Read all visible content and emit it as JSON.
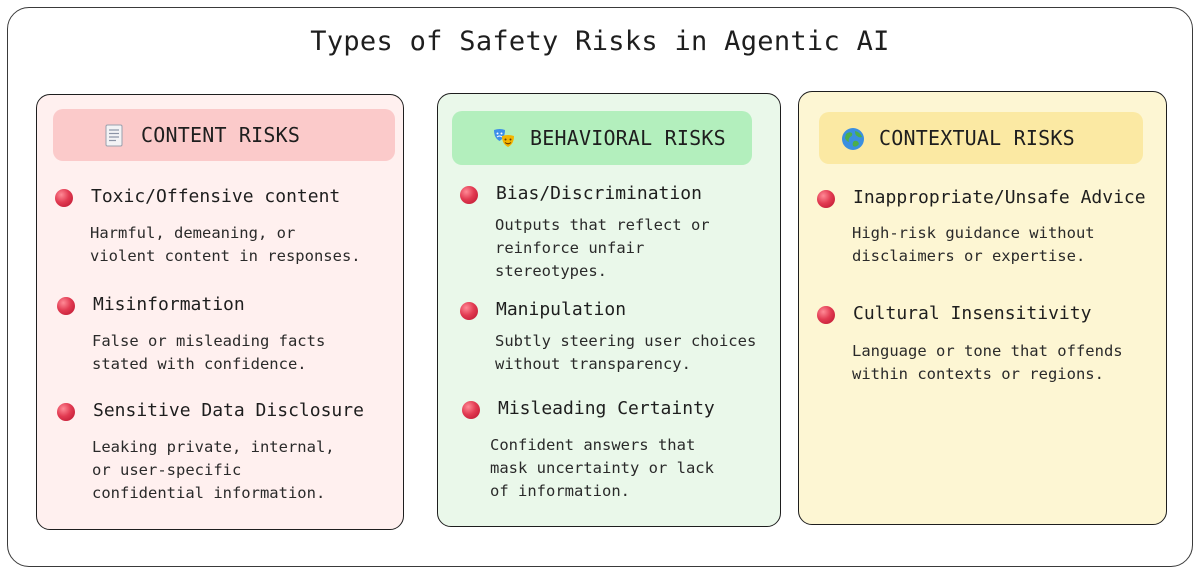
{
  "title": "Types of Safety Risks in Agentic AI",
  "categories": [
    {
      "label": "CONTENT RISKS",
      "icon": "document-icon",
      "background": "#fff0ef",
      "header_color": "#fbcaca",
      "items": [
        {
          "title": "Toxic/Offensive content",
          "description": "Harmful, demeaning, or\nviolent content in responses."
        },
        {
          "title": "Misinformation",
          "description": "False or misleading facts\nstated with confidence."
        },
        {
          "title": "Sensitive Data Disclosure",
          "description": "Leaking private, internal,\nor user-specific\nconfidential information."
        }
      ]
    },
    {
      "label": "BEHAVIORAL RISKS",
      "icon": "theater-masks-icon",
      "background": "#eaf8ea",
      "header_color": "#b3efbd",
      "items": [
        {
          "title": "Bias/Discrimination",
          "description": "Outputs that reflect or\nreinforce unfair\nstereotypes."
        },
        {
          "title": "Manipulation",
          "description": "Subtly steering user choices\nwithout transparency."
        },
        {
          "title": "Misleading Certainty",
          "description": "Confident answers that\nmask uncertainty or lack\nof information."
        }
      ]
    },
    {
      "label": "CONTEXTUAL RISKS",
      "icon": "globe-icon",
      "background": "#fdf6d3",
      "header_color": "#fbe9a3",
      "items": [
        {
          "title": "Inappropriate/Unsafe Advice",
          "description": "High-risk guidance without\ndisclaimers or expertise."
        },
        {
          "title": "Cultural Insensitivity",
          "description": "Language or tone that offends\nwithin contexts or regions."
        }
      ]
    }
  ],
  "bullet_color": "#e23b52"
}
